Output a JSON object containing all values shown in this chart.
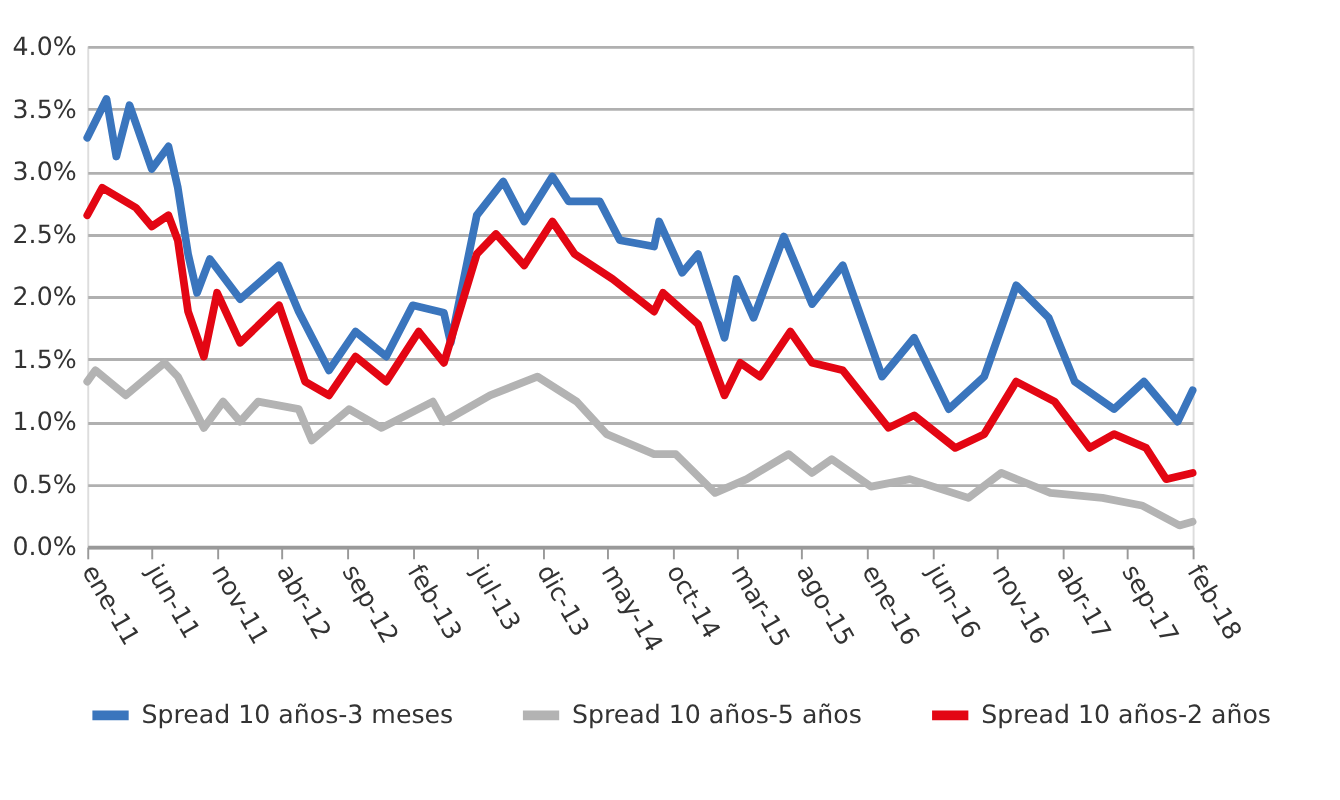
{
  "chart_data": {
    "type": "line",
    "line_style": "solid",
    "marker": "none",
    "grid": "y",
    "legend": "bottom",
    "xlim": [
      "2011-01-01",
      "2018-02-01"
    ],
    "xticks": [
      {
        "value": "2011-01",
        "label": "ene-11"
      },
      {
        "value": "2011-06",
        "label": "jun-11"
      },
      {
        "value": "2011-11",
        "label": "nov-11"
      },
      {
        "value": "2012-04",
        "label": "abr-12"
      },
      {
        "value": "2012-09",
        "label": "sep-12"
      },
      {
        "value": "2013-02",
        "label": "feb-13"
      },
      {
        "value": "2013-07",
        "label": "jul-13"
      },
      {
        "value": "2013-12",
        "label": "dic-13"
      },
      {
        "value": "2014-05",
        "label": "may-14"
      },
      {
        "value": "2014-10",
        "label": "oct-14"
      },
      {
        "value": "2015-03",
        "label": "mar-15"
      },
      {
        "value": "2015-08",
        "label": "ago-15"
      },
      {
        "value": "2016-01",
        "label": "ene-16"
      },
      {
        "value": "2016-06",
        "label": "jun-16"
      },
      {
        "value": "2016-11",
        "label": "nov-16"
      },
      {
        "value": "2017-04",
        "label": "abr-17"
      },
      {
        "value": "2017-09",
        "label": "sep-17"
      },
      {
        "value": "2018-02",
        "label": "feb-18"
      }
    ],
    "ylim": [
      0,
      4
    ],
    "yticks": [
      {
        "value": 0,
        "label": "0.0%"
      },
      {
        "value": 0.5,
        "label": "0.5%"
      },
      {
        "value": 1,
        "label": "1.0%"
      },
      {
        "value": 1.5,
        "label": "1.5%"
      },
      {
        "value": 2,
        "label": "2.0%"
      },
      {
        "value": 2.5,
        "label": "2.5%"
      },
      {
        "value": 3,
        "label": "3.0%"
      },
      {
        "value": 3.5,
        "label": "3.5%"
      },
      {
        "value": 4,
        "label": "4.0%"
      }
    ],
    "series": [
      {
        "name": "Spread 10 años-3 meses",
        "color": "#3a75bd",
        "x": [
          "2011-01-01",
          "2011-02-15",
          "2011-03-10",
          "2011-04-10",
          "2011-06-01",
          "2011-07-10",
          "2011-08-01",
          "2011-08-25",
          "2011-09-15",
          "2011-10-15",
          "2011-12-25",
          "2012-03-25",
          "2012-05-10",
          "2012-07-20",
          "2012-09-20",
          "2012-12-01",
          "2013-02-01",
          "2013-04-15",
          "2013-05-01",
          "2013-07-01",
          "2013-09-01",
          "2013-10-20",
          "2013-12-25",
          "2014-02-01",
          "2014-04-15",
          "2014-06-01",
          "2014-08-20",
          "2014-09-01",
          "2014-10-25",
          "2014-12-01",
          "2015-02-01",
          "2015-03-01",
          "2015-04-10",
          "2015-06-20",
          "2015-08-25",
          "2015-11-05",
          "2016-02-05",
          "2016-04-20",
          "2016-07-10",
          "2016-10-01",
          "2016-12-15",
          "2017-03-01",
          "2017-05-01",
          "2017-08-01",
          "2017-10-10",
          "2017-12-28",
          "2018-02-01"
        ],
        "values": [
          3.27,
          3.58,
          3.12,
          3.53,
          3.02,
          3.2,
          2.87,
          2.34,
          2.03,
          2.3,
          1.98,
          2.25,
          1.88,
          1.41,
          1.72,
          1.52,
          1.93,
          1.87,
          1.63,
          2.65,
          2.92,
          2.6,
          2.96,
          2.76,
          2.76,
          2.45,
          2.4,
          2.6,
          2.19,
          2.34,
          1.67,
          2.14,
          1.83,
          2.48,
          1.94,
          2.25,
          1.36,
          1.67,
          1.1,
          1.36,
          2.09,
          1.83,
          1.32,
          1.1,
          1.32,
          1.0,
          1.25
        ]
      },
      {
        "name": "Spread 10 años-5 años",
        "color": "#b3b3b3",
        "x": [
          "2011-01-01",
          "2011-01-20",
          "2011-04-01",
          "2011-07-01",
          "2011-08-01",
          "2011-10-01",
          "2011-11-15",
          "2011-12-25",
          "2012-02-05",
          "2012-05-10",
          "2012-06-10",
          "2012-09-05",
          "2012-11-20",
          "2013-03-20",
          "2013-04-15",
          "2013-08-01",
          "2013-11-20",
          "2014-02-20",
          "2014-05-01",
          "2014-08-20",
          "2014-10-10",
          "2015-01-10",
          "2015-03-25",
          "2015-07-01",
          "2015-08-25",
          "2015-10-10",
          "2016-01-10",
          "2016-04-10",
          "2016-08-25",
          "2016-11-10",
          "2017-03-05",
          "2017-07-05",
          "2017-10-05",
          "2018-01-01",
          "2018-02-01"
        ],
        "values": [
          1.32,
          1.41,
          1.21,
          1.47,
          1.36,
          0.95,
          1.16,
          1.0,
          1.16,
          1.1,
          0.85,
          1.1,
          0.95,
          1.16,
          1.0,
          1.21,
          1.36,
          1.16,
          0.9,
          0.74,
          0.74,
          0.43,
          0.54,
          0.74,
          0.59,
          0.7,
          0.48,
          0.54,
          0.39,
          0.59,
          0.43,
          0.39,
          0.33,
          0.17,
          0.2
        ]
      },
      {
        "name": "Spread 10 años-2 años",
        "color": "#e30613",
        "x": [
          "2011-01-01",
          "2011-02-05",
          "2011-04-25",
          "2011-06-01",
          "2011-07-10",
          "2011-08-01",
          "2011-08-25",
          "2011-10-01",
          "2011-11-01",
          "2011-12-25",
          "2012-03-25",
          "2012-05-25",
          "2012-07-20",
          "2012-09-20",
          "2012-12-01",
          "2013-02-15",
          "2013-04-15",
          "2013-07-01",
          "2013-08-15",
          "2013-10-20",
          "2013-12-25",
          "2014-02-15",
          "2014-05-15",
          "2014-08-20",
          "2014-09-10",
          "2014-12-01",
          "2015-02-01",
          "2015-03-10",
          "2015-04-25",
          "2015-07-05",
          "2015-08-25",
          "2015-11-05",
          "2016-02-20",
          "2016-04-20",
          "2016-07-25",
          "2016-10-01",
          "2016-12-15",
          "2017-03-15",
          "2017-06-05",
          "2017-08-01",
          "2017-10-15",
          "2017-12-01",
          "2018-02-01"
        ],
        "values": [
          2.65,
          2.87,
          2.71,
          2.56,
          2.65,
          2.45,
          1.88,
          1.52,
          2.03,
          1.63,
          1.93,
          1.32,
          1.21,
          1.52,
          1.32,
          1.72,
          1.47,
          2.34,
          2.5,
          2.25,
          2.6,
          2.34,
          2.14,
          1.88,
          2.03,
          1.78,
          1.21,
          1.47,
          1.36,
          1.72,
          1.47,
          1.41,
          0.95,
          1.05,
          0.79,
          0.9,
          1.32,
          1.16,
          0.79,
          0.9,
          0.79,
          0.54,
          0.59
        ]
      }
    ]
  }
}
